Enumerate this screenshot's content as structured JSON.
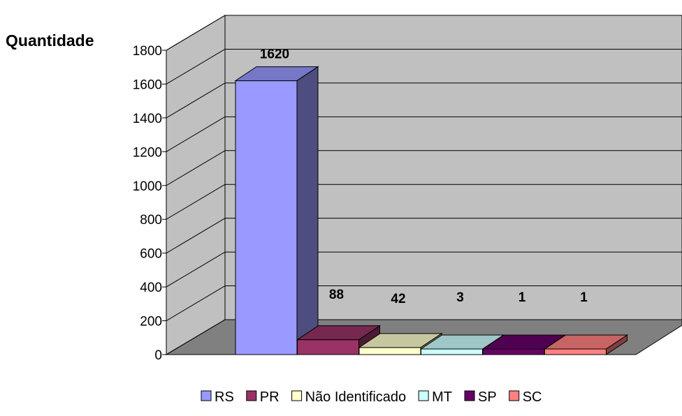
{
  "chart_data": {
    "type": "bar",
    "ylabel": "Quantidade",
    "xlabel": "",
    "title": "",
    "ylim": [
      0,
      1800
    ],
    "yticks": [
      0,
      200,
      400,
      600,
      800,
      1000,
      1200,
      1400,
      1600,
      1800
    ],
    "grid": true,
    "legend_position": "bottom",
    "series": [
      {
        "name": "RS",
        "value": 1620,
        "label": "1620",
        "color": "#9999FF"
      },
      {
        "name": "PR",
        "value": 88,
        "label": "88",
        "color": "#993366"
      },
      {
        "name": "Não Identificado",
        "value": 42,
        "label": "42",
        "color": "#FFFFCC"
      },
      {
        "name": "MT",
        "value": 3,
        "label": "3",
        "color": "#CCFFFF"
      },
      {
        "name": "SP",
        "value": 1,
        "label": "1",
        "color": "#660066"
      },
      {
        "name": "SC",
        "value": 1,
        "label": "1",
        "color": "#FF8080"
      }
    ],
    "wall_color": "#C0C0C0",
    "floor_color": "#808080"
  }
}
